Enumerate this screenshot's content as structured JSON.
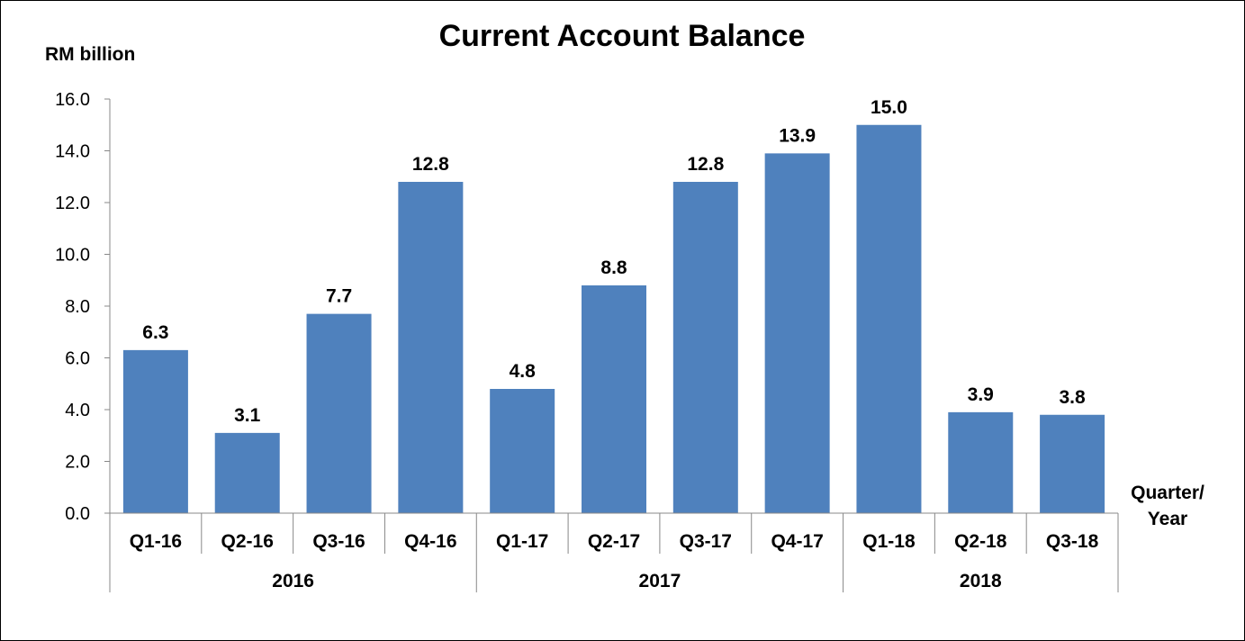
{
  "chart_data": {
    "type": "bar",
    "title": "Current Account Balance",
    "ylabel": "RM billion",
    "xlabel": "Quarter/ Year",
    "xlabel_lines": [
      "Quarter/",
      "Year"
    ],
    "ylim": [
      0,
      16
    ],
    "yticks": [
      "0.0",
      "2.0",
      "4.0",
      "6.0",
      "8.0",
      "10.0",
      "12.0",
      "14.0",
      "16.0"
    ],
    "categories": [
      "Q1-16",
      "Q2-16",
      "Q3-16",
      "Q4-16",
      "Q1-17",
      "Q2-17",
      "Q3-17",
      "Q4-17",
      "Q1-18",
      "Q2-18",
      "Q3-18"
    ],
    "groups": [
      {
        "label": "2016",
        "count": 4
      },
      {
        "label": "2017",
        "count": 4
      },
      {
        "label": "2018",
        "count": 3
      }
    ],
    "values": [
      6.3,
      3.1,
      7.7,
      12.8,
      4.8,
      8.8,
      12.8,
      13.9,
      15.0,
      3.9,
      3.8
    ],
    "data_labels": [
      "6.3",
      "3.1",
      "7.7",
      "12.8",
      "4.8",
      "8.8",
      "12.8",
      "13.9",
      "15.0",
      "3.9",
      "3.8"
    ],
    "grid": false,
    "legend": "none",
    "bar_color": "#4F81BD"
  }
}
